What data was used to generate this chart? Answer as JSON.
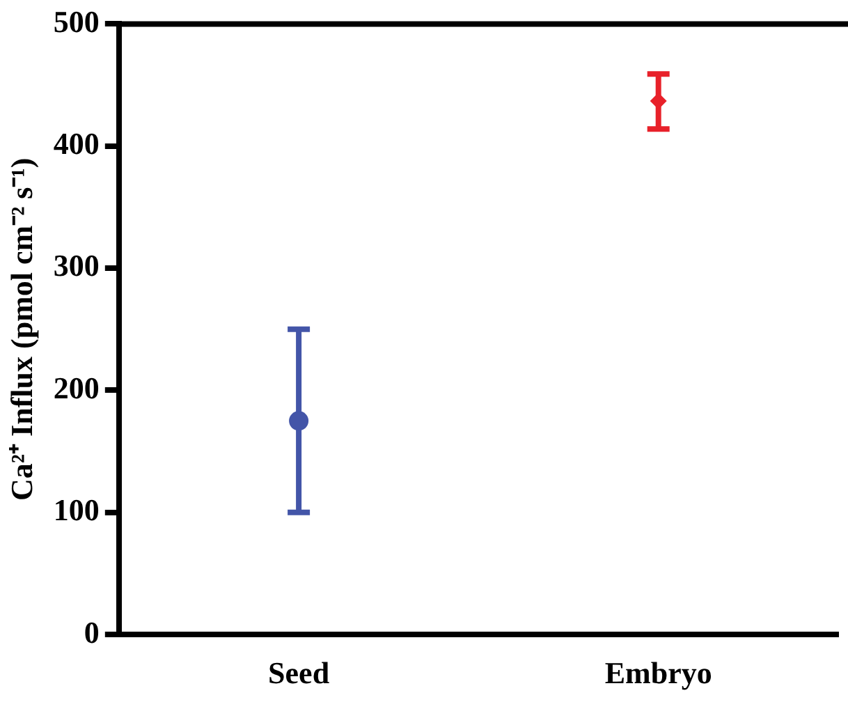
{
  "chart_data": {
    "type": "scatter",
    "ylabel": "Ca²⁺ Influx (pmol cm⁻² s⁻¹)",
    "categories": [
      "Seed",
      "Embryo"
    ],
    "series": [
      {
        "color": "#4355a8",
        "marker": "circle",
        "values": [
          175,
          null
        ],
        "errors": [
          [
            100,
            250
          ],
          null
        ]
      },
      {
        "color": "#e8212a",
        "marker": "diamond",
        "values": [
          null,
          437
        ],
        "errors": [
          null,
          [
            414,
            459
          ]
        ]
      }
    ],
    "ylim": [
      0,
      500
    ],
    "yticks": [
      0,
      100,
      200,
      300,
      400,
      500
    ],
    "grid": false,
    "legend": false
  }
}
